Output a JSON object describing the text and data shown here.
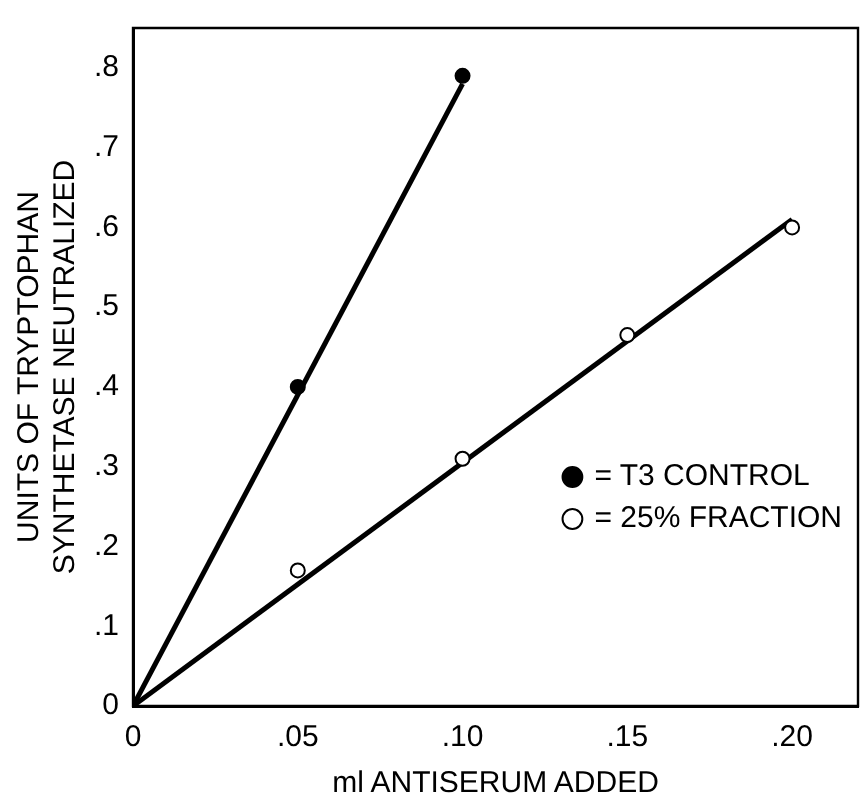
{
  "chart_data": {
    "type": "scatter",
    "xlabel": "ml ANTISERUM ADDED",
    "ylabel": "UNITS OF TRYPTOPHAN\nSYNTHETASE NEUTRALIZED",
    "xlim": [
      0,
      0.22
    ],
    "ylim": [
      0,
      0.85
    ],
    "xticks": [
      0,
      {
        "value": 0.05,
        "label": ".05"
      },
      {
        "value": 0.1,
        "label": ".10"
      },
      {
        "value": 0.15,
        "label": ".15"
      },
      {
        "value": 0.2,
        "label": ".20"
      }
    ],
    "yticks": [
      0,
      {
        "value": 0.1,
        "label": ".1"
      },
      {
        "value": 0.2,
        "label": ".2"
      },
      {
        "value": 0.3,
        "label": ".3"
      },
      {
        "value": 0.4,
        "label": ".4"
      },
      {
        "value": 0.5,
        "label": ".5"
      },
      {
        "value": 0.6,
        "label": ".6"
      },
      {
        "value": 0.7,
        "label": ".7"
      },
      {
        "value": 0.8,
        "label": ".8"
      }
    ],
    "grid": false,
    "legend": "bottom right",
    "series": [
      {
        "name": "= T3 CONTROL",
        "type": "scatter",
        "marker": "circle",
        "color": "#000000",
        "x": [
          0.05,
          0.1
        ],
        "values": [
          0.4,
          0.79
        ]
      },
      {
        "name": "= 25% FRACTION",
        "type": "scatter",
        "marker": "circle",
        "color": "#ffffff",
        "x": [
          0.05,
          0.1,
          0.15,
          0.2
        ],
        "values": [
          0.17,
          0.31,
          0.465,
          0.6
        ]
      },
      {
        "type": "line",
        "marker": "none",
        "color": "#000000",
        "x": [
          0,
          0.1
        ],
        "values": [
          0,
          0.78
        ]
      },
      {
        "type": "line",
        "marker": "none",
        "color": "#000000",
        "x": [
          0,
          0.2
        ],
        "values": [
          0,
          0.61
        ]
      }
    ]
  }
}
